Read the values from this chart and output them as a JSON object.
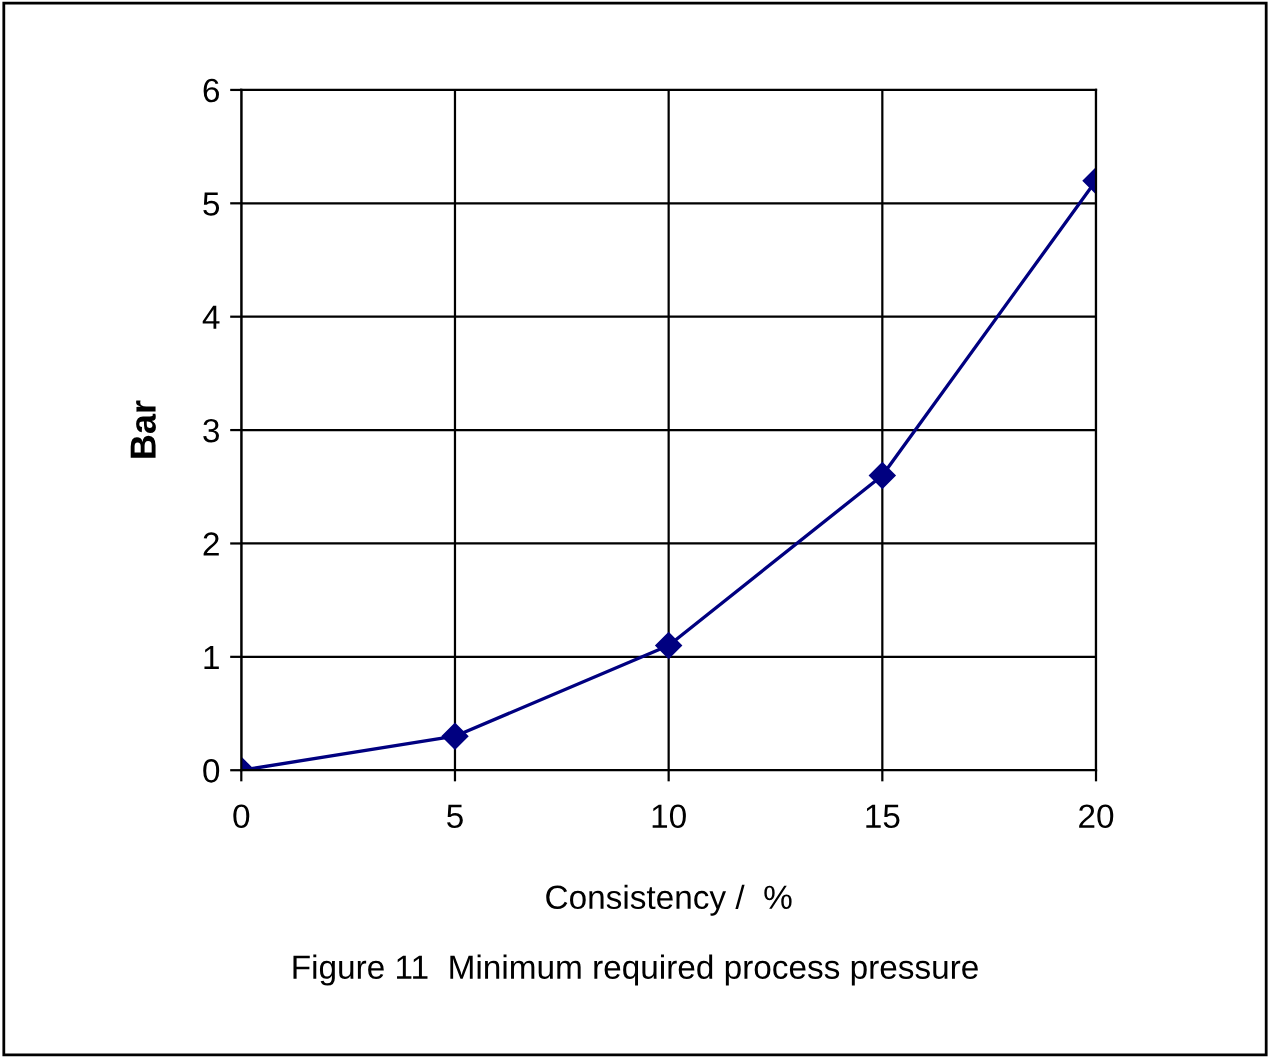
{
  "chart_data": {
    "type": "line",
    "title": "Figure 11  Minimum required process pressure",
    "xlabel": "Consistency /  %",
    "ylabel": "Bar",
    "x": [
      0,
      5,
      10,
      15,
      20
    ],
    "series": [
      {
        "color": "#000080",
        "values": [
          0,
          0.3,
          1.1,
          2.6,
          5.2
        ]
      }
    ],
    "xlim": [
      0,
      20
    ],
    "xticks": [
      0,
      5,
      10,
      15,
      20
    ],
    "ylim": [
      0,
      6
    ],
    "yticks": [
      0,
      1,
      2,
      3,
      4,
      5,
      6
    ],
    "grid": true,
    "marker": "diamond",
    "line_style": "solid",
    "legend": false
  }
}
